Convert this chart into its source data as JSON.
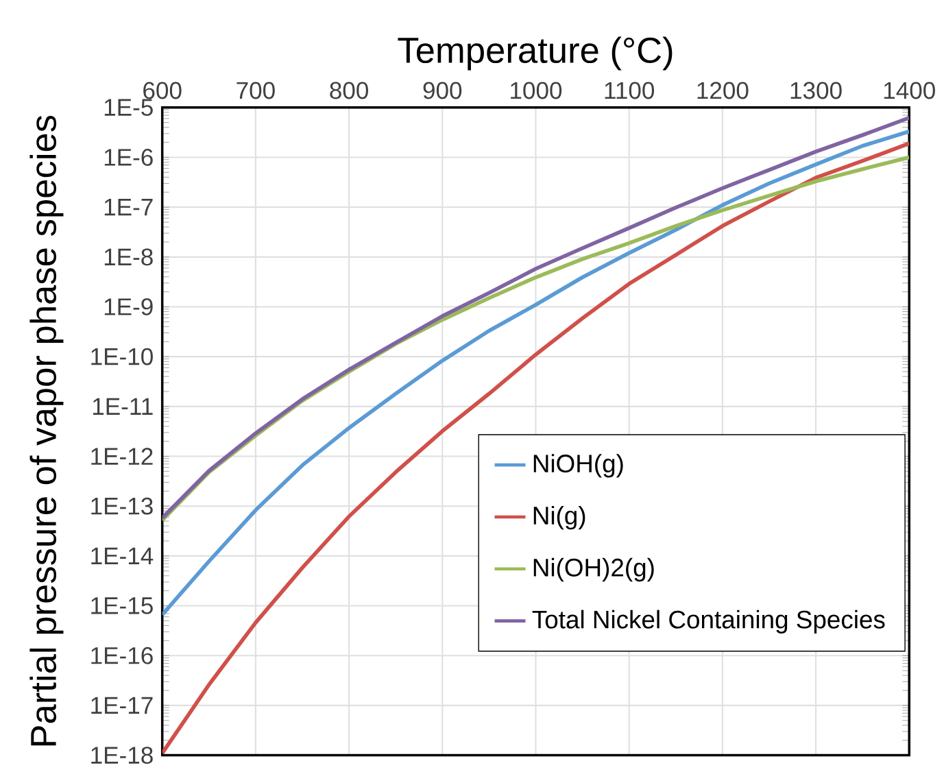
{
  "chart_data": {
    "type": "line",
    "xlabel": "Temperature (°C)",
    "ylabel": "Partial pressure of vapor phase species",
    "x": [
      600,
      650,
      700,
      750,
      800,
      850,
      900,
      950,
      1000,
      1050,
      1100,
      1150,
      1200,
      1250,
      1300,
      1350,
      1400
    ],
    "series": [
      {
        "name": "NiOH(g)",
        "color": "#5b9bd5",
        "values": [
          6.6e-16,
          7.8e-15,
          8.3e-14,
          6.6e-13,
          3.7e-12,
          1.8e-11,
          8.3e-11,
          3.3e-10,
          1.1e-09,
          3.9e-09,
          1.2e-08,
          3.5e-08,
          1.1e-07,
          3e-07,
          7.2e-07,
          1.7e-06,
          3.3e-06
        ]
      },
      {
        "name": "Ni(g)",
        "color": "#d0504a",
        "values": [
          1.1e-18,
          2.6e-17,
          4.6e-16,
          5.8e-15,
          6.2e-14,
          4.8e-13,
          3.2e-12,
          1.8e-11,
          1.1e-10,
          5.9e-10,
          2.9e-09,
          1.1e-08,
          4.2e-08,
          1.3e-07,
          3.9e-07,
          8.5e-07,
          1.9e-06
        ]
      },
      {
        "name": "Ni(OH)2(g)",
        "color": "#9bbb59",
        "values": [
          5.2e-14,
          4.8e-13,
          2.6e-12,
          1.3e-11,
          5e-11,
          1.8e-10,
          5.5e-10,
          1.5e-09,
          3.9e-09,
          9.1e-09,
          1.9e-08,
          4.2e-08,
          8.7e-08,
          1.7e-07,
          3.3e-07,
          5.8e-07,
          1e-06
        ]
      },
      {
        "name": "Total Nickel Containing Species",
        "color": "#8064a2",
        "values": [
          5.8e-14,
          5.1e-13,
          2.9e-12,
          1.4e-11,
          5.5e-11,
          1.9e-10,
          6.5e-10,
          1.9e-09,
          5.8e-09,
          1.5e-08,
          3.8e-08,
          9.8e-08,
          2.4e-07,
          5.6e-07,
          1.3e-06,
          2.8e-06,
          6.2e-06
        ]
      }
    ],
    "xlim": [
      600,
      1400
    ],
    "xticks": [
      600,
      700,
      800,
      900,
      1000,
      1100,
      1200,
      1300,
      1400
    ],
    "ylim": [
      1e-18,
      1e-05
    ],
    "yticks": [
      {
        "value": 1e-18,
        "label": "1E-18"
      },
      {
        "value": 1e-17,
        "label": "1E-17"
      },
      {
        "value": 1e-16,
        "label": "1E-16"
      },
      {
        "value": 1e-15,
        "label": "1E-15"
      },
      {
        "value": 1e-14,
        "label": "1E-14"
      },
      {
        "value": 1e-13,
        "label": "1E-13"
      },
      {
        "value": 1e-12,
        "label": "1E-12"
      },
      {
        "value": 1e-11,
        "label": "1E-11"
      },
      {
        "value": 1e-10,
        "label": "1E-10"
      },
      {
        "value": 1e-09,
        "label": "1E-9"
      },
      {
        "value": 1e-08,
        "label": "1E-8"
      },
      {
        "value": 1e-07,
        "label": "1E-7"
      },
      {
        "value": 1e-06,
        "label": "1E-6"
      },
      {
        "value": 1e-05,
        "label": "1E-5"
      }
    ],
    "log": "y",
    "grid": true,
    "legend": "bottom right",
    "marker": "none",
    "line_style": "solid"
  }
}
